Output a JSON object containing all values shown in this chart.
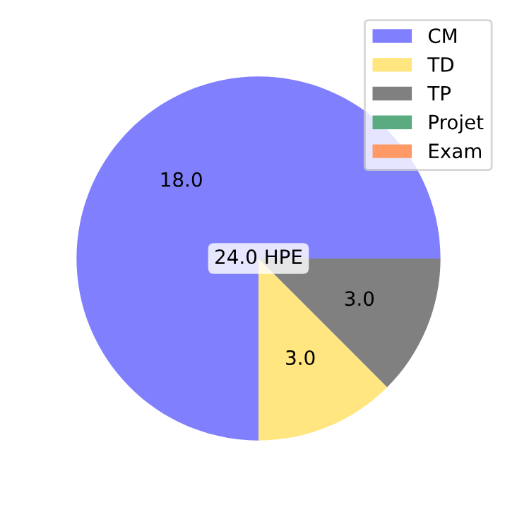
{
  "chart_data": {
    "type": "pie",
    "categories": [
      "CM",
      "TD",
      "TP",
      "Projet",
      "Exam"
    ],
    "values": [
      18,
      3,
      3,
      0,
      0
    ],
    "value_labels": [
      "18.0",
      "3.0",
      "3.0",
      null,
      null
    ],
    "colors": [
      "#8080ff",
      "#ffe680",
      "#808080",
      "#5aab80",
      "#ff9966"
    ],
    "annotations": [
      "24.0 HPE"
    ],
    "legend": "top right"
  }
}
